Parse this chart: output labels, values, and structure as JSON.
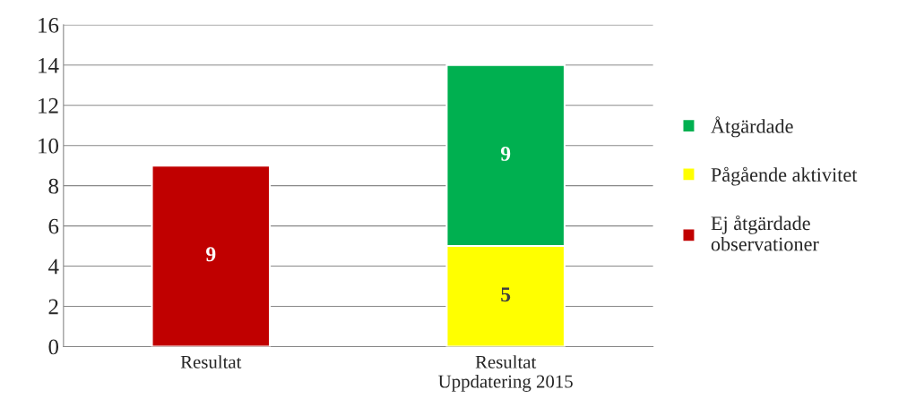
{
  "chart_data": {
    "type": "bar",
    "stacked": true,
    "categories": [
      "Resultat",
      "Resultat\nUppdatering 2015"
    ],
    "series": [
      {
        "name": "Ej åtgärdade\nobservationer",
        "color": "#c00000",
        "values": [
          9,
          null
        ]
      },
      {
        "name": "Pågående aktivitet",
        "color": "#ffff00",
        "values": [
          null,
          5
        ]
      },
      {
        "name": "Åtgärdade",
        "color": "#00b050",
        "values": [
          null,
          9
        ]
      }
    ],
    "ylim": [
      0,
      16
    ],
    "yticks": [
      0,
      2,
      4,
      6,
      8,
      10,
      12,
      14,
      16
    ],
    "grid": "y",
    "legend": "right",
    "data_labels": true
  }
}
